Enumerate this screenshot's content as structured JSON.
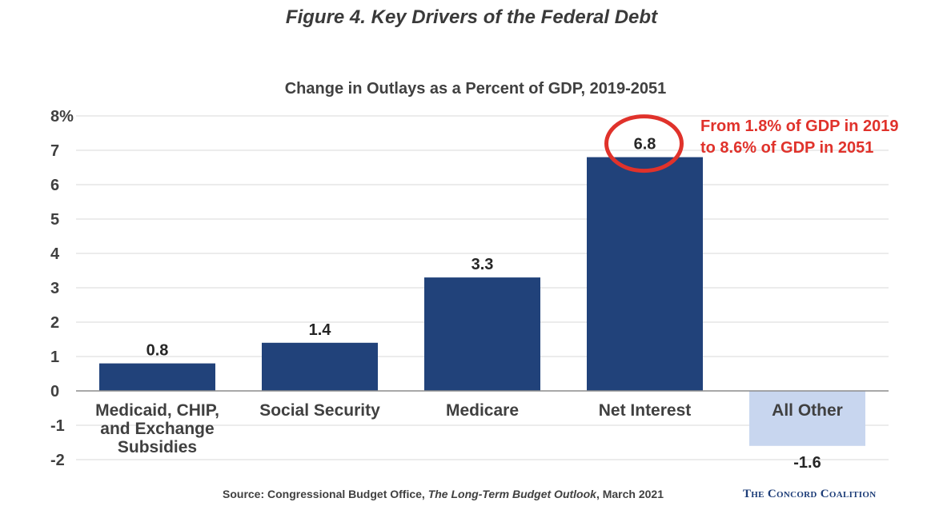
{
  "figure_title": "Figure 4. Key Drivers of the Federal Debt",
  "source": {
    "prefix": "Source: Congressional Budget Office, ",
    "title": "The Long-Term Budget Outlook",
    "suffix": ", March 2021"
  },
  "brand": "The Concord Coalition",
  "callout": {
    "line1": "From 1.8% of GDP in 2019",
    "line2": "to 8.6% of GDP in 2051"
  },
  "colors": {
    "positive_bar": "#21427a",
    "negative_bar": "#c8d6ef",
    "callout": "#e0322b",
    "text": "#404040"
  },
  "chart_data": {
    "type": "bar",
    "title": "Change in Outlays as a Percent of GDP, 2019-2051",
    "categories": [
      "Medicaid, CHIP, and Exchange Subsidies",
      "Social Security",
      "Medicare",
      "Net Interest",
      "All Other"
    ],
    "category_lines": [
      [
        "Medicaid, CHIP,",
        "and Exchange",
        "Subsidies"
      ],
      [
        "Social Security"
      ],
      [
        "Medicare"
      ],
      [
        "Net Interest"
      ],
      [
        "All Other"
      ]
    ],
    "values": [
      0.8,
      1.4,
      3.3,
      6.8,
      -1.6
    ],
    "value_labels": [
      "0.8",
      "1.4",
      "3.3",
      "6.8",
      "-1.6"
    ],
    "ylim": [
      -2,
      8
    ],
    "yticks": [
      8,
      7,
      6,
      5,
      4,
      3,
      2,
      1,
      0,
      -1,
      -2
    ],
    "ytick_labels": [
      "8%",
      "7",
      "6",
      "5",
      "4",
      "3",
      "2",
      "1",
      "0",
      "-1",
      "-2"
    ],
    "grid": true,
    "highlight_index": 3
  }
}
